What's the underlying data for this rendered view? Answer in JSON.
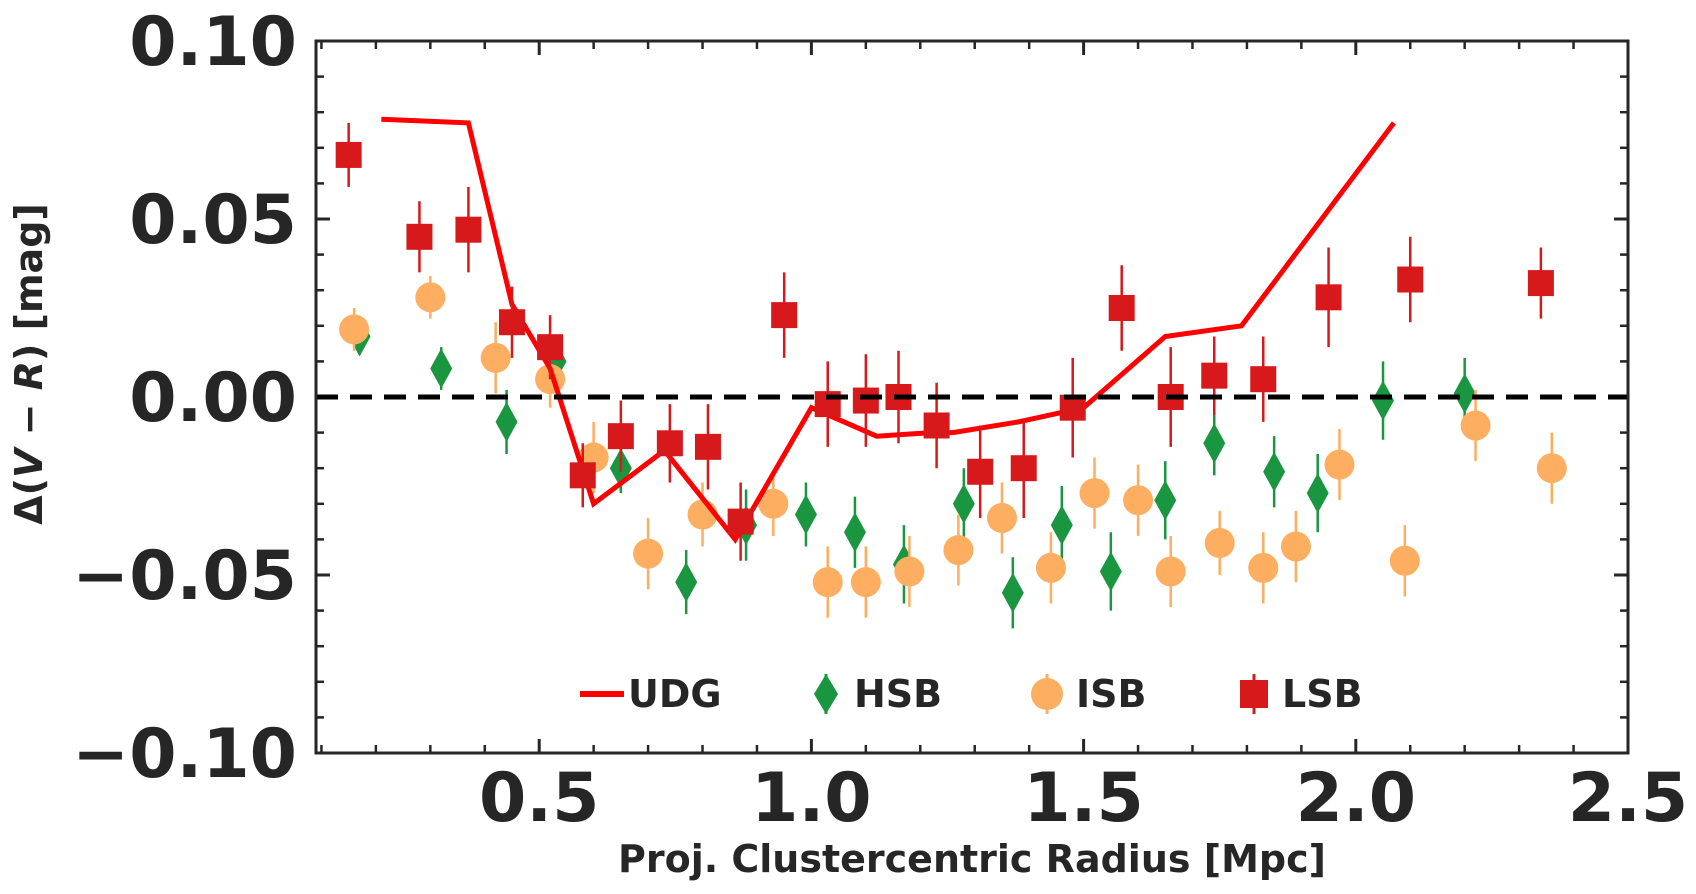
{
  "chart_data": {
    "type": "scatter",
    "title": "",
    "xlabel": "Proj. Clustercentric Radius [Mpc]",
    "ylabel_parts": [
      "Δ(",
      "V",
      " − ",
      "R",
      ") [mag]"
    ],
    "xlim": [
      0.09,
      2.5
    ],
    "ylim": [
      -0.1,
      0.1
    ],
    "xticks": [
      0.5,
      1.0,
      1.5,
      2.0,
      2.5
    ],
    "xtick_labels": [
      "0.5",
      "1.0",
      "1.5",
      "2.0",
      "2.5"
    ],
    "yticks": [
      0.1,
      0.05,
      0.0,
      -0.05,
      -0.1
    ],
    "ytick_labels": [
      "0.10",
      "0.05",
      "0.00",
      "−0.05",
      "−0.10"
    ],
    "reference_line": {
      "y": 0.0,
      "style": "dashed",
      "color": "#000000"
    },
    "legend": {
      "position": "lower-center",
      "entries": [
        "UDG",
        "HSB",
        "ISB",
        "LSB"
      ]
    },
    "series": [
      {
        "name": "UDG",
        "kind": "line",
        "color": "#ff0000",
        "x": [
          0.21,
          0.37,
          0.45,
          0.52,
          0.6,
          0.73,
          0.86,
          1.0,
          1.06,
          1.12,
          1.22,
          1.26,
          1.38,
          1.5,
          1.65,
          1.79,
          2.07
        ],
        "y": [
          0.078,
          0.077,
          0.026,
          0.008,
          -0.03,
          -0.015,
          -0.04,
          -0.003,
          -0.007,
          -0.011,
          -0.01,
          -0.01,
          -0.007,
          -0.003,
          0.017,
          0.02,
          0.077
        ]
      },
      {
        "name": "HSB",
        "kind": "diamond",
        "color": "#1a9641",
        "x": [
          0.17,
          0.32,
          0.44,
          0.53,
          0.65,
          0.77,
          0.88,
          0.99,
          1.08,
          1.17,
          1.28,
          1.37,
          1.46,
          1.55,
          1.65,
          1.74,
          1.85,
          1.93,
          2.05,
          2.2
        ],
        "y": [
          0.017,
          0.008,
          -0.007,
          0.01,
          -0.02,
          -0.052,
          -0.036,
          -0.033,
          -0.038,
          -0.047,
          -0.03,
          -0.055,
          -0.036,
          -0.049,
          -0.029,
          -0.013,
          -0.021,
          -0.027,
          -0.001,
          0.001
        ],
        "err": [
          0.004,
          0.006,
          0.009,
          0.006,
          0.007,
          0.009,
          0.01,
          0.009,
          0.01,
          0.011,
          0.01,
          0.01,
          0.011,
          0.011,
          0.011,
          0.009,
          0.01,
          0.011,
          0.011,
          0.01
        ]
      },
      {
        "name": "ISB",
        "kind": "circle",
        "color": "#fdae61",
        "x": [
          0.16,
          0.3,
          0.42,
          0.52,
          0.6,
          0.7,
          0.8,
          0.93,
          1.03,
          1.1,
          1.18,
          1.27,
          1.35,
          1.44,
          1.52,
          1.6,
          1.66,
          1.75,
          1.83,
          1.89,
          1.97,
          2.09,
          2.22,
          2.36
        ],
        "y": [
          0.019,
          0.028,
          0.011,
          0.005,
          -0.017,
          -0.044,
          -0.033,
          -0.03,
          -0.052,
          -0.052,
          -0.049,
          -0.043,
          -0.034,
          -0.048,
          -0.027,
          -0.029,
          -0.049,
          -0.041,
          -0.048,
          -0.042,
          -0.019,
          -0.046,
          -0.008,
          -0.02
        ],
        "err": [
          0.006,
          0.006,
          0.01,
          0.008,
          0.01,
          0.01,
          0.009,
          0.009,
          0.01,
          0.01,
          0.01,
          0.01,
          0.01,
          0.01,
          0.01,
          0.01,
          0.01,
          0.009,
          0.01,
          0.01,
          0.01,
          0.01,
          0.01,
          0.01
        ]
      },
      {
        "name": "LSB",
        "kind": "square",
        "color": "#d7191c",
        "x": [
          0.15,
          0.28,
          0.37,
          0.45,
          0.52,
          0.58,
          0.65,
          0.74,
          0.81,
          0.87,
          0.95,
          1.03,
          1.1,
          1.16,
          1.23,
          1.31,
          1.39,
          1.48,
          1.57,
          1.66,
          1.74,
          1.83,
          1.95,
          2.1,
          2.34
        ],
        "y": [
          0.068,
          0.045,
          0.047,
          0.021,
          0.014,
          -0.022,
          -0.011,
          -0.013,
          -0.014,
          -0.035,
          0.023,
          -0.002,
          -0.001,
          0.0,
          -0.008,
          -0.021,
          -0.02,
          -0.003,
          0.025,
          0.0,
          0.006,
          0.005,
          0.028,
          0.033,
          0.032
        ],
        "err": [
          0.009,
          0.01,
          0.012,
          0.01,
          0.009,
          0.009,
          0.01,
          0.011,
          0.012,
          0.011,
          0.012,
          0.012,
          0.013,
          0.013,
          0.012,
          0.013,
          0.014,
          0.014,
          0.012,
          0.014,
          0.011,
          0.012,
          0.014,
          0.012,
          0.01
        ]
      }
    ]
  }
}
